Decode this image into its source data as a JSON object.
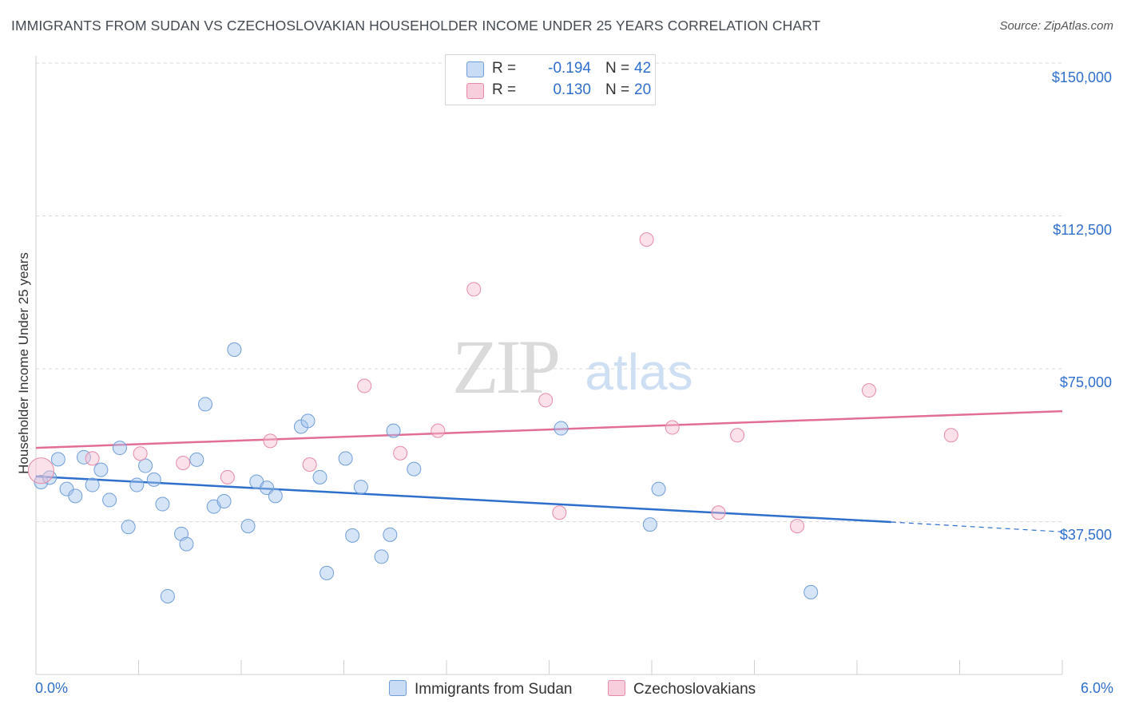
{
  "header": {
    "title": "IMMIGRANTS FROM SUDAN VS CZECHOSLOVAKIAN HOUSEHOLDER INCOME UNDER 25 YEARS CORRELATION CHART",
    "source": "Source: ZipAtlas.com"
  },
  "watermark": {
    "zip": "ZIP",
    "atlas": "atlas"
  },
  "legend": {
    "r_label": "R =",
    "n_label": "N =",
    "rows": [
      {
        "r": "-0.194",
        "n": "42",
        "color": "#a9c8f0"
      },
      {
        "r": "0.130",
        "n": "20",
        "color": "#f6bfd0"
      }
    ]
  },
  "bottom_legend": {
    "series1": "Immigrants from Sudan",
    "series2": "Czechoslovakians"
  },
  "axes": {
    "ylabel": "Householder Income Under 25 years",
    "x_left": "0.0%",
    "x_right": "6.0%",
    "y_ticks": [
      "$150,000",
      "$112,500",
      "$75,000",
      "$37,500"
    ]
  },
  "colors": {
    "blue_point_fill": "rgba(164,196,238,0.45)",
    "blue_point_stroke": "#6f9ed8",
    "blue_line": "#2f6fcc",
    "pink_point_fill": "rgba(246,190,208,0.45)",
    "pink_point_stroke": "#e58aa8",
    "pink_line": "#e26e95",
    "grid": "#d9d9d9",
    "tick_text": "#2f6fcc"
  },
  "chart_data": {
    "type": "scatter",
    "title": "IMMIGRANTS FROM SUDAN VS CZECHOSLOVAKIAN HOUSEHOLDER INCOME UNDER 25 YEARS CORRELATION CHART",
    "xlabel": "",
    "ylabel": "Householder Income Under 25 years",
    "xlim": [
      0,
      6
    ],
    "ylim": [
      0,
      150000
    ],
    "y_ticks": [
      37500,
      75000,
      112500,
      150000
    ],
    "grid": true,
    "legend_position": "top-center",
    "series": [
      {
        "name": "Immigrants from Sudan",
        "r": -0.194,
        "n": 42,
        "points": [
          [
            0.03,
            47200
          ],
          [
            0.08,
            48300
          ],
          [
            0.13,
            52800
          ],
          [
            0.18,
            45500
          ],
          [
            0.23,
            43800
          ],
          [
            0.28,
            53300
          ],
          [
            0.33,
            46500
          ],
          [
            0.38,
            50200
          ],
          [
            0.43,
            42800
          ],
          [
            0.49,
            55600
          ],
          [
            0.54,
            36200
          ],
          [
            0.59,
            46500
          ],
          [
            0.64,
            51200
          ],
          [
            0.69,
            47800
          ],
          [
            0.74,
            41800
          ],
          [
            0.77,
            19200
          ],
          [
            0.85,
            34500
          ],
          [
            0.88,
            32000
          ],
          [
            0.94,
            52700
          ],
          [
            0.99,
            66300
          ],
          [
            1.04,
            41200
          ],
          [
            1.1,
            42500
          ],
          [
            1.16,
            79700
          ],
          [
            1.24,
            36400
          ],
          [
            1.29,
            47300
          ],
          [
            1.35,
            45800
          ],
          [
            1.4,
            43800
          ],
          [
            1.55,
            60800
          ],
          [
            1.59,
            62200
          ],
          [
            1.66,
            48400
          ],
          [
            1.7,
            24900
          ],
          [
            1.81,
            53000
          ],
          [
            1.85,
            34100
          ],
          [
            1.9,
            46000
          ],
          [
            2.02,
            28900
          ],
          [
            2.07,
            34300
          ],
          [
            2.09,
            59800
          ],
          [
            2.21,
            50400
          ],
          [
            3.07,
            60400
          ],
          [
            3.59,
            36800
          ],
          [
            3.64,
            45500
          ],
          [
            4.53,
            20200
          ]
        ],
        "trend": {
          "x": [
            0.0,
            5.0
          ],
          "y": [
            48600,
            37400
          ]
        },
        "trend_dashed": {
          "x": [
            5.0,
            6.0
          ],
          "y": [
            37400,
            35000
          ]
        }
      },
      {
        "name": "Czechoslovakians",
        "r": 0.13,
        "n": 20,
        "points": [
          [
            0.03,
            50000
          ],
          [
            0.33,
            53000
          ],
          [
            0.61,
            54200
          ],
          [
            0.86,
            51900
          ],
          [
            1.12,
            48400
          ],
          [
            1.37,
            57300
          ],
          [
            1.6,
            51500
          ],
          [
            1.92,
            70800
          ],
          [
            2.13,
            54300
          ],
          [
            2.35,
            59800
          ],
          [
            2.56,
            94500
          ],
          [
            2.98,
            67300
          ],
          [
            3.06,
            39700
          ],
          [
            3.57,
            106700
          ],
          [
            3.72,
            60600
          ],
          [
            3.99,
            39700
          ],
          [
            4.1,
            58700
          ],
          [
            4.45,
            36400
          ],
          [
            4.87,
            69700
          ],
          [
            5.35,
            58700
          ]
        ],
        "trend": {
          "x": [
            0.0,
            6.0
          ],
          "y": [
            55600,
            64600
          ]
        }
      }
    ]
  }
}
